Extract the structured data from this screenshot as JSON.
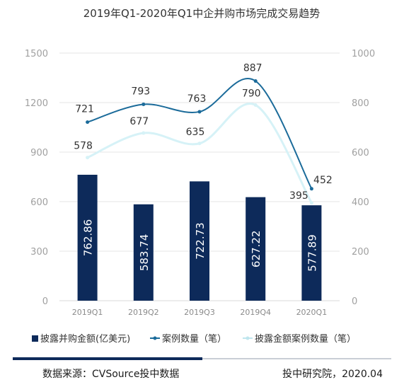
{
  "chart_data": {
    "type": "bar",
    "title": "2019年Q1-2020年Q1中企并购市场完成交易趋势",
    "categories": [
      "2019Q1",
      "2019Q2",
      "2019Q3",
      "2019Q4",
      "2020Q1"
    ],
    "y_left": {
      "ylim": [
        0,
        1500
      ],
      "ticks": [
        "0",
        "300",
        "600",
        "900",
        "1200",
        "1500"
      ]
    },
    "y_right": {
      "ylim": [
        0,
        1000
      ],
      "ticks": [
        "0",
        "200",
        "400",
        "600",
        "800",
        "1000"
      ]
    },
    "series": [
      {
        "name": "披露并购金额(亿美元)",
        "type": "bar",
        "axis": "left",
        "color": "#0d2a5a",
        "values": [
          762.86,
          583.74,
          722.73,
          627.22,
          577.89
        ],
        "labels": [
          "762.86",
          "583.74",
          "722.73",
          "627.22",
          "577.89"
        ]
      },
      {
        "name": "案例数量（笔）",
        "type": "line",
        "axis": "right",
        "color": "#1b6b9a",
        "values": [
          721,
          793,
          763,
          887,
          452
        ],
        "labels": [
          "721",
          "793",
          "763",
          "887",
          "452"
        ]
      },
      {
        "name": "披露金额案例数量（笔）",
        "type": "line",
        "axis": "right",
        "color": "#d6f2f7",
        "values": [
          578,
          677,
          635,
          790,
          395
        ],
        "labels": [
          "578",
          "677",
          "635",
          "790",
          "395"
        ]
      }
    ],
    "grid": true,
    "legend_position": "bottom"
  },
  "footer": {
    "source": "数据来源：CVSource投中数据",
    "credit": "投中研究院，2020.04"
  }
}
